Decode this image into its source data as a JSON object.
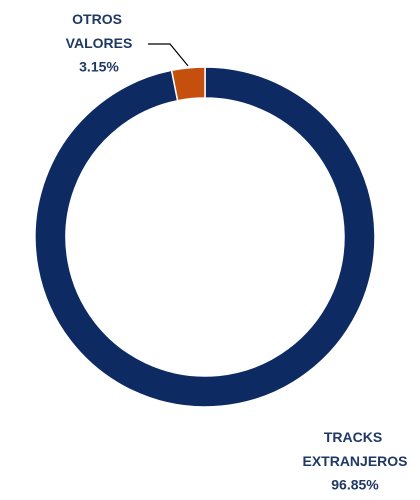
{
  "chart_data": {
    "type": "donut",
    "categories": [
      "TRACKS EXTRANJEROS",
      "OTROS VALORES"
    ],
    "values": [
      96.85,
      3.15
    ],
    "value_labels": [
      "96.85%",
      "3.15%"
    ],
    "colors": [
      "#0d2a63",
      "#c5500e"
    ],
    "start_angle": 0,
    "direction": "clockwise"
  }
}
